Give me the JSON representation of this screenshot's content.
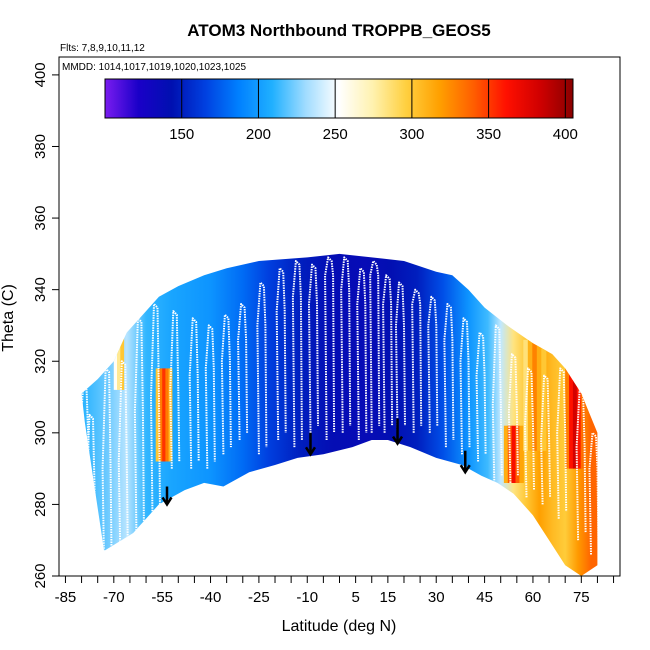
{
  "chart_data": {
    "type": "heatmap",
    "title": "ATOM3 Northbound TROPPB_GEOS5",
    "annotations": {
      "flights": "Flts: 7,8,9,10,11,12",
      "dates": "MMDD: 1014,1017,1019,1020,1023,1025"
    },
    "xlabel": "Latitude (deg N)",
    "ylabel": "Theta (C)",
    "xlim": [
      -87,
      87
    ],
    "ylim": [
      260,
      405
    ],
    "x_ticks": [
      -85,
      -80,
      -75,
      -70,
      -65,
      -60,
      -55,
      -50,
      -45,
      -40,
      -35,
      -30,
      -25,
      -20,
      -15,
      -10,
      -5,
      0,
      5,
      10,
      15,
      20,
      25,
      30,
      35,
      40,
      45,
      50,
      55,
      60,
      65,
      70,
      75,
      80,
      85
    ],
    "x_tick_labels": [
      "-85",
      "-70",
      "-55",
      "-40",
      "-25",
      "-10",
      "5",
      "15",
      "30",
      "45",
      "60",
      "75"
    ],
    "x_tick_label_values": [
      -85,
      -70,
      -55,
      -40,
      -25,
      -10,
      5,
      15,
      30,
      45,
      60,
      75
    ],
    "y_ticks": [
      260,
      280,
      300,
      320,
      340,
      360,
      380,
      400
    ],
    "y_tick_labels": [
      "260",
      "280",
      "300",
      "320",
      "340",
      "360",
      "380",
      "400"
    ],
    "colorbar": {
      "range": [
        100,
        405
      ],
      "ticks": [
        150,
        200,
        250,
        300,
        350,
        400
      ],
      "tick_labels": [
        "150",
        "200",
        "250",
        "300",
        "350",
        "400"
      ],
      "colors": [
        "#7a1cf0",
        "#1a00c8",
        "#0010b0",
        "#0040e0",
        "#0080ff",
        "#20b0ff",
        "#a0dcff",
        "#ffffff",
        "#fff2b0",
        "#ffd040",
        "#ffa000",
        "#ff6000",
        "#ff1000",
        "#d00000",
        "#8a0000"
      ]
    },
    "lower_boundary": [
      [
        -79,
        303
      ],
      [
        -73,
        267
      ],
      [
        -64,
        272
      ],
      [
        -56,
        280
      ],
      [
        -48,
        284
      ],
      [
        -42,
        286
      ],
      [
        -36,
        285
      ],
      [
        -28,
        289
      ],
      [
        -20,
        291
      ],
      [
        -13,
        293
      ],
      [
        -5,
        294
      ],
      [
        4,
        296
      ],
      [
        10,
        298
      ],
      [
        15,
        298
      ],
      [
        22,
        296
      ],
      [
        30,
        293
      ],
      [
        38,
        291
      ],
      [
        44,
        288
      ],
      [
        49,
        286
      ],
      [
        54,
        283
      ],
      [
        60,
        277
      ],
      [
        65,
        270
      ],
      [
        70,
        263
      ],
      [
        75,
        260
      ],
      [
        80,
        263
      ]
    ],
    "upper_boundary": [
      [
        -80,
        311
      ],
      [
        -75,
        315
      ],
      [
        -70,
        320
      ],
      [
        -66,
        328
      ],
      [
        -61,
        333
      ],
      [
        -56,
        338
      ],
      [
        -50,
        341
      ],
      [
        -42,
        344
      ],
      [
        -35,
        346
      ],
      [
        -30,
        347
      ],
      [
        -25,
        348
      ],
      [
        -10,
        349
      ],
      [
        0,
        350
      ],
      [
        10,
        349
      ],
      [
        20,
        348
      ],
      [
        30,
        345
      ],
      [
        35,
        344
      ],
      [
        40,
        340
      ],
      [
        45,
        335
      ],
      [
        52,
        330
      ],
      [
        60,
        325
      ],
      [
        66,
        322
      ],
      [
        70,
        318
      ],
      [
        75,
        311
      ],
      [
        80,
        300
      ]
    ],
    "field_stops": [
      [
        -80,
        210
      ],
      [
        -72,
        222
      ],
      [
        -66,
        236
      ],
      [
        -60,
        212
      ],
      [
        -52,
        204
      ],
      [
        -40,
        196
      ],
      [
        -30,
        180
      ],
      [
        -22,
        165
      ],
      [
        -12,
        150
      ],
      [
        -2,
        140
      ],
      [
        8,
        138
      ],
      [
        16,
        142
      ],
      [
        24,
        150
      ],
      [
        32,
        170
      ],
      [
        40,
        196
      ],
      [
        46,
        214
      ],
      [
        50,
        238
      ],
      [
        54,
        284
      ],
      [
        58,
        300
      ],
      [
        62,
        318
      ],
      [
        66,
        306
      ],
      [
        70,
        298
      ],
      [
        74,
        320
      ],
      [
        78,
        338
      ]
    ],
    "hot_patches": [
      {
        "lat": [
          -57,
          -52
        ],
        "theta": [
          292,
          318
        ],
        "values": [
          300,
          330,
          352,
          330,
          305
        ]
      },
      {
        "lat": [
          -70,
          -67
        ],
        "theta": [
          312,
          328
        ],
        "values": [
          255,
          280,
          300
        ]
      },
      {
        "lat": [
          51,
          57
        ],
        "theta": [
          286,
          302
        ],
        "values": [
          312,
          342,
          365,
          340,
          315
        ]
      },
      {
        "lat": [
          57,
          64
        ],
        "theta": [
          295,
          326
        ],
        "values": [
          285,
          310,
          328,
          312,
          300
        ]
      },
      {
        "lat": [
          70,
          76
        ],
        "theta": [
          290,
          320
        ],
        "values": [
          330,
          362,
          382,
          360,
          335
        ]
      }
    ],
    "tropopause_profiles": [
      {
        "lat": -80,
        "theta": [
          282,
          300,
          313
        ]
      },
      {
        "lat": -78,
        "theta": [
          268,
          285,
          305
        ]
      },
      {
        "lat": -73,
        "theta": [
          262,
          290,
          318
        ]
      },
      {
        "lat": -68,
        "theta": [
          266,
          292,
          320
        ]
      },
      {
        "lat": -63,
        "theta": [
          272,
          306,
          332
        ]
      },
      {
        "lat": -58,
        "theta": [
          276,
          310,
          336
        ]
      },
      {
        "lat": -52,
        "theta": [
          290,
          312,
          334
        ]
      },
      {
        "lat": -46,
        "theta": [
          290,
          316,
          332
        ]
      },
      {
        "lat": -41,
        "theta": [
          290,
          318,
          330
        ]
      },
      {
        "lat": -36,
        "theta": [
          294,
          320,
          333
        ]
      },
      {
        "lat": -31,
        "theta": [
          298,
          326,
          336
        ]
      },
      {
        "lat": -25,
        "theta": [
          294,
          330,
          342
        ]
      },
      {
        "lat": -19,
        "theta": [
          298,
          334,
          346
        ]
      },
      {
        "lat": -14,
        "theta": [
          296,
          338,
          348
        ]
      },
      {
        "lat": -9,
        "theta": [
          300,
          336,
          347
        ]
      },
      {
        "lat": -4,
        "theta": [
          298,
          344,
          349
        ]
      },
      {
        "lat": 1,
        "theta": [
          300,
          340,
          349
        ]
      },
      {
        "lat": 6,
        "theta": [
          298,
          336,
          346
        ]
      },
      {
        "lat": 10,
        "theta": [
          300,
          344,
          348
        ]
      },
      {
        "lat": 14,
        "theta": [
          300,
          336,
          344
        ]
      },
      {
        "lat": 18,
        "theta": [
          300,
          330,
          342
        ]
      },
      {
        "lat": 23,
        "theta": [
          300,
          336,
          340
        ]
      },
      {
        "lat": 28,
        "theta": [
          300,
          330,
          338
        ]
      },
      {
        "lat": 33,
        "theta": [
          296,
          326,
          336
        ]
      },
      {
        "lat": 38,
        "theta": [
          294,
          320,
          332
        ]
      },
      {
        "lat": 43,
        "theta": [
          292,
          316,
          328
        ]
      },
      {
        "lat": 48,
        "theta": [
          286,
          308,
          330
        ]
      },
      {
        "lat": 53,
        "theta": [
          286,
          306,
          322
        ]
      },
      {
        "lat": 58,
        "theta": [
          282,
          302,
          318
        ]
      },
      {
        "lat": 63,
        "theta": [
          280,
          298,
          316
        ]
      },
      {
        "lat": 68,
        "theta": [
          276,
          300,
          318
        ]
      },
      {
        "lat": 74,
        "theta": [
          270,
          296,
          312
        ]
      },
      {
        "lat": 78,
        "theta": [
          266,
          290,
          300
        ]
      }
    ],
    "arrows": [
      {
        "lat": -53.5,
        "theta_start": 285,
        "theta_end": 280
      },
      {
        "lat": -9,
        "theta_start": 300,
        "theta_end": 294
      },
      {
        "lat": 18,
        "theta_start": 304,
        "theta_end": 297
      },
      {
        "lat": 39,
        "theta_start": 295,
        "theta_end": 289
      }
    ]
  }
}
